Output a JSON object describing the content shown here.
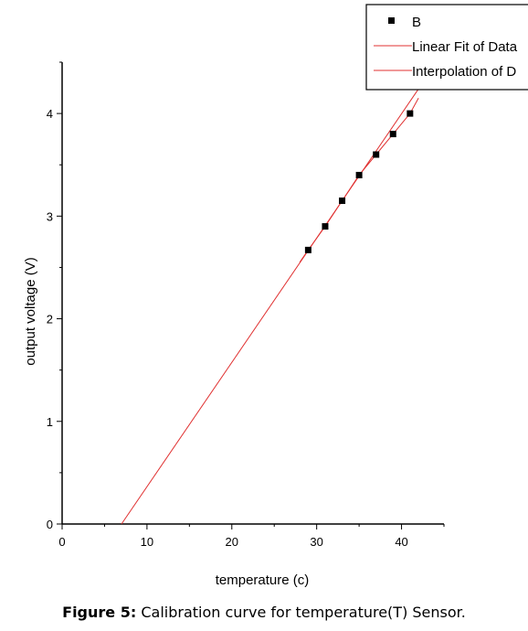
{
  "chart_data": {
    "type": "scatter",
    "xlabel": "temperature (c)",
    "ylabel": "output voltage (V)",
    "xlim": [
      0,
      45
    ],
    "ylim": [
      0,
      4.5
    ],
    "x_ticks": [
      0,
      10,
      20,
      30,
      40
    ],
    "y_ticks": [
      0,
      1,
      2,
      3,
      4
    ],
    "grid": false,
    "legend_position": "top-right",
    "series": [
      {
        "name": "B",
        "kind": "scatter",
        "marker": "square",
        "color": "#000000",
        "x": [
          29,
          31,
          33,
          35,
          37,
          39,
          41
        ],
        "y": [
          2.67,
          2.9,
          3.15,
          3.4,
          3.6,
          3.8,
          4.0
        ]
      },
      {
        "name": "Linear Fit of Data",
        "kind": "line",
        "color": "#e03030",
        "x": [
          7,
          42.5
        ],
        "y": [
          0,
          4.3
        ]
      },
      {
        "name": "Interpolation of D",
        "kind": "line",
        "color": "#e03030",
        "x": [
          28,
          29,
          31,
          33,
          35,
          37,
          39,
          41,
          42
        ],
        "y": [
          2.55,
          2.67,
          2.9,
          3.15,
          3.4,
          3.6,
          3.8,
          4.0,
          4.15
        ]
      }
    ]
  },
  "caption": {
    "label": "Figure 5:",
    "text": " Calibration curve for temperature(T) Sensor."
  }
}
